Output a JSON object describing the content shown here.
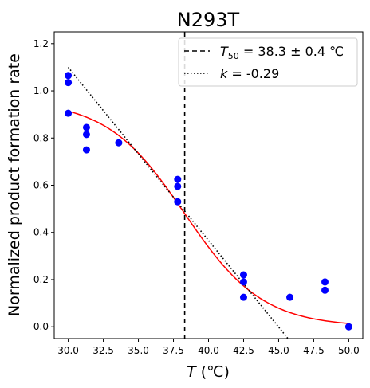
{
  "chart_data": {
    "type": "scatter",
    "title": "N293T",
    "xlabel": "T (°C)",
    "xlabel_var": "T",
    "xlabel_unit": " (℃)",
    "ylabel": "Normalized product formation rate",
    "xlim": [
      29.0,
      51.0
    ],
    "ylim": [
      -0.05,
      1.25
    ],
    "x_ticks": [
      "30.0",
      "32.5",
      "35.0",
      "37.5",
      "40.0",
      "42.5",
      "45.0",
      "47.5",
      "50.0"
    ],
    "y_ticks": [
      "0.0",
      "0.2",
      "0.4",
      "0.6",
      "0.8",
      "1.0",
      "1.2"
    ],
    "grid": false,
    "legend_position": "top-right",
    "series": [
      {
        "kind": "points",
        "color": "#0000ff",
        "points": [
          [
            30.0,
            1.065
          ],
          [
            30.0,
            1.035
          ],
          [
            30.0,
            0.905
          ],
          [
            31.3,
            0.845
          ],
          [
            31.3,
            0.815
          ],
          [
            31.3,
            0.75
          ],
          [
            33.6,
            0.78
          ],
          [
            37.8,
            0.625
          ],
          [
            37.8,
            0.595
          ],
          [
            37.8,
            0.53
          ],
          [
            42.5,
            0.22
          ],
          [
            42.5,
            0.19
          ],
          [
            42.5,
            0.125
          ],
          [
            45.8,
            0.125
          ],
          [
            48.3,
            0.19
          ],
          [
            48.3,
            0.155
          ],
          [
            50.0,
            0.0
          ]
        ]
      },
      {
        "kind": "sigmoid-fit",
        "color": "#ff0000",
        "amplitude": 0.96,
        "midpoint": 38.3,
        "slope": 0.36,
        "x_range": [
          30.0,
          50.0
        ]
      },
      {
        "kind": "threshold-line",
        "color": "#000000",
        "x": 38.3
      },
      {
        "kind": "tangent-line",
        "color": "#000000",
        "points": [
          [
            30.0,
            1.1
          ],
          [
            45.8,
            -0.06
          ]
        ]
      }
    ],
    "legend": [
      {
        "style": "dashed",
        "sym": "T",
        "sub": "50",
        "rest": " = 38.3 ± 0.4 ℃"
      },
      {
        "style": "dotted",
        "sym": "k",
        "sub": "",
        "rest": " = -0.29"
      }
    ]
  }
}
